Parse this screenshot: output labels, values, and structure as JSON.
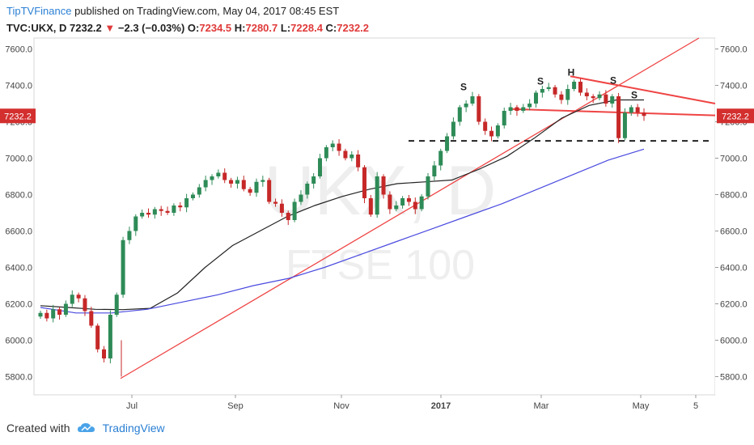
{
  "header": {
    "publisher": "TipTVFinance",
    "published_text": "published on TradingView.com, May 04, 2017 08:45 EST",
    "symbol": "TVC:UKX, D",
    "last": "7232.2",
    "change": "−2.3 (−0.03%)",
    "o_label": "O:",
    "o_value": "7234.5",
    "h_label": "H:",
    "h_value": "7280.7",
    "l_label": "L:",
    "l_value": "7228.4",
    "c_label": "C:",
    "c_value": "7232.2"
  },
  "watermark": {
    "main": "UKX, D",
    "sub": "FTSE 100"
  },
  "footer": {
    "created_with": "Created with",
    "brand": "TradingView"
  },
  "colors": {
    "up": "#2e8b57",
    "down": "#c62828",
    "ma_short": "#222222",
    "ma_long": "#4a4ae0",
    "trend": "#ef4444",
    "price_tag": "#d32f2f"
  },
  "chart_data": {
    "type": "candlestick",
    "x_ticks": [
      "Jul",
      "Sep",
      "Nov",
      "2017",
      "Mar",
      "May",
      "5"
    ],
    "y_ticks": [
      "7600.0",
      "7400.0",
      "7200.0",
      "7000.0",
      "6800.0",
      "6600.0",
      "6400.0",
      "6200.0",
      "6000.0",
      "5800.0"
    ],
    "ylim": [
      5700,
      7660
    ],
    "last_price_tag": "7232.2",
    "close_series": [
      6150,
      6120,
      6170,
      6140,
      6200,
      6250,
      6230,
      6160,
      6080,
      5950,
      5900,
      6140,
      6250,
      6550,
      6600,
      6680,
      6700,
      6690,
      6720,
      6710,
      6700,
      6740,
      6730,
      6780,
      6800,
      6840,
      6880,
      6900,
      6920,
      6880,
      6860,
      6880,
      6830,
      6810,
      6870,
      6880,
      6760,
      6750,
      6700,
      6660,
      6760,
      6800,
      6860,
      6900,
      7000,
      7060,
      7080,
      7040,
      7000,
      7020,
      6950,
      6780,
      6690,
      6900,
      6800,
      6720,
      6740,
      6780,
      6760,
      6720,
      6790,
      6900,
      6960,
      7040,
      7120,
      7200,
      7280,
      7300,
      7340,
      7200,
      7150,
      7120,
      7180,
      7260,
      7280,
      7260,
      7280,
      7300,
      7360,
      7380,
      7390,
      7350,
      7320,
      7380,
      7420,
      7360,
      7340,
      7330,
      7350,
      7300,
      7340,
      7110,
      7250,
      7280,
      7250,
      7232.2
    ],
    "ma_short": [
      6190,
      6180,
      6170,
      6168,
      6175,
      6260,
      6400,
      6520,
      6600,
      6680,
      6740,
      6790,
      6830,
      6860,
      6870,
      6880,
      6940,
      7010,
      7110,
      7220,
      7290,
      7320,
      7320
    ],
    "ma_long": [
      6180,
      6150,
      6150,
      6170,
      6210,
      6250,
      6300,
      6340,
      6400,
      6470,
      6540,
      6610,
      6680,
      6750,
      6830,
      6910,
      6990,
      7050
    ],
    "pattern_labels": [
      "S",
      "S",
      "H",
      "S",
      "S"
    ],
    "annotations": [
      "trendline",
      "neckline",
      "support (dashed)",
      "descending resistance"
    ]
  }
}
